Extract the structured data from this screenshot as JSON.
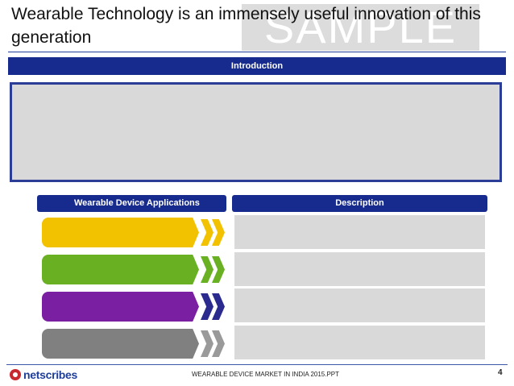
{
  "slide": {
    "title": "Wearable Technology is an immensely useful innovation of this generation",
    "watermark": "SAMPLE"
  },
  "introduction": {
    "header": "Introduction"
  },
  "applications": {
    "header": "Wearable Device Applications",
    "rows": [
      {
        "color": "#f2c200",
        "chevron": "#f2c200"
      },
      {
        "color": "#6ab023",
        "chevron": "#6ab023"
      },
      {
        "color": "#7b1fa2",
        "chevron": "#2a2a8f"
      },
      {
        "color": "#808080",
        "chevron": "#9a9a9a"
      }
    ]
  },
  "description": {
    "header": "Description"
  },
  "footer": {
    "brand": "netscribes",
    "document": "WEARABLE DEVICE MARKET IN INDIA 2015.PPT",
    "page": "4"
  },
  "colors": {
    "primary": "#172b8e",
    "placeholder": "#d9d9d9",
    "brand_red": "#c8292e"
  }
}
